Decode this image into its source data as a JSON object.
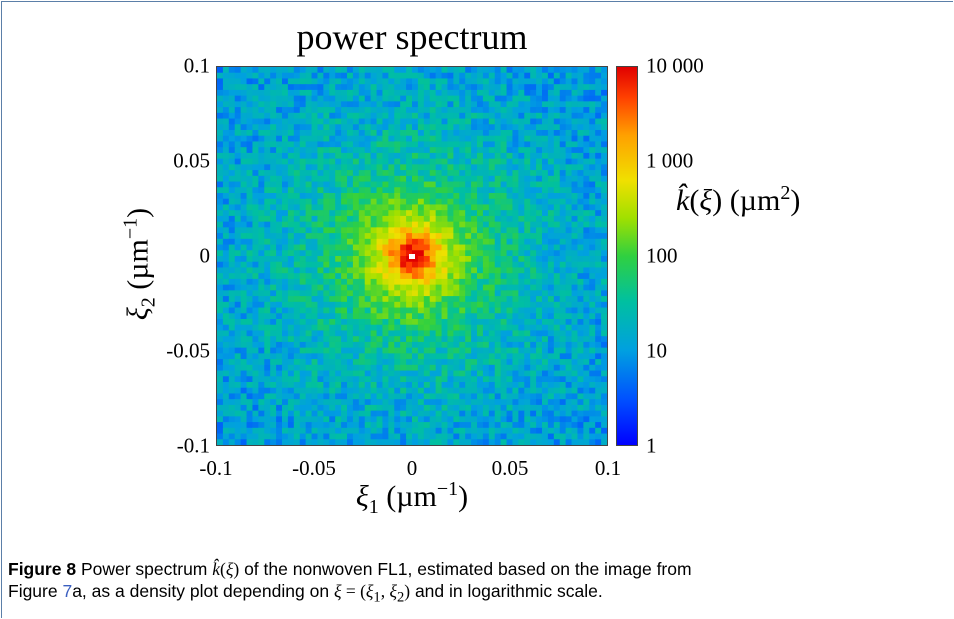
{
  "chart_data": {
    "type": "heatmap",
    "title": "power spectrum",
    "ylabel_sub": "2",
    "ylabel_unit": "(µm",
    "ylabel_exp": "−1",
    "ylabel_close": ")",
    "xlabel_sub": "1",
    "xlabel_unit": "(µm",
    "xlabel_exp": "−1",
    "xlabel_close": ")",
    "colorbar_label_unit": "(µm",
    "colorbar_label_exp": "2",
    "colorbar_label_close": ")",
    "xlim": [
      -0.1,
      0.1
    ],
    "ylim": [
      -0.1,
      0.1
    ],
    "x_ticks": [
      -0.1,
      -0.05,
      0,
      0.05,
      0.1
    ],
    "x_tick_labels": [
      "-0.1",
      "-0.05",
      "0",
      "0.05",
      "0.1"
    ],
    "y_ticks": [
      0.1,
      0.05,
      0,
      -0.05,
      -0.1
    ],
    "y_tick_labels": [
      "0.1",
      "0.05",
      "0",
      "-0.05",
      "-0.1"
    ],
    "colorbar_scale": "log",
    "colorbar_range": [
      1,
      10000
    ],
    "colorbar_ticks": [
      10000,
      1000,
      100,
      10,
      1
    ],
    "colorbar_tick_labels": [
      "10 000",
      "1 000",
      "100",
      "10",
      "1"
    ],
    "colormap": [
      "#0000ff",
      "#0050ff",
      "#00a0e0",
      "#00c0a0",
      "#30d040",
      "#a0e000",
      "#f0e000",
      "#ffa000",
      "#ff4000",
      "#e00000"
    ],
    "peak_center": [
      0,
      0
    ],
    "peak_value": 10000,
    "edge_value": 20
  },
  "caption": {
    "label": "Figure 8",
    "part1": "Power spectrum",
    "part2": "of the nonwoven FL1, estimated based on the image from",
    "part3": "Figure ",
    "ref": "7",
    "part4": "a, as a density plot depending on",
    "part5": "and in logarithmic scale."
  }
}
